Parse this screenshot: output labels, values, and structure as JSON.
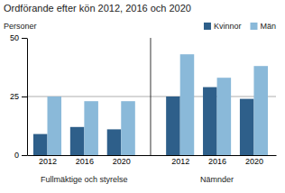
{
  "chart_data": {
    "type": "bar",
    "title": "Ordförande efter kön 2012, 2016 och 2020",
    "ylabel": "Personer",
    "categories": [
      "2012",
      "2016",
      "2020",
      "2012",
      "2016",
      "2020"
    ],
    "annotations": [
      "Fullmäktige och styrelse",
      "Nämnder"
    ],
    "series": [
      {
        "name": "Kvinnor",
        "color": "#2e5f8a",
        "values": [
          9,
          12,
          11,
          25,
          29,
          24
        ]
      },
      {
        "name": "Män",
        "color": "#8ab9d9",
        "values": [
          25,
          23,
          23,
          43,
          33,
          38
        ]
      }
    ],
    "reference_line": 25,
    "ylim": [
      0,
      50
    ],
    "yticks": [
      0,
      25,
      50
    ],
    "grid": false,
    "legend": "top"
  }
}
